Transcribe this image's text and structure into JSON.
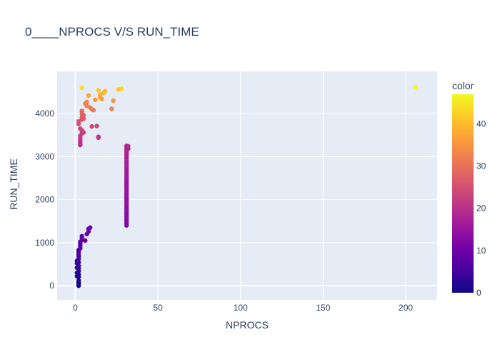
{
  "chart_data": {
    "type": "scatter",
    "title": "0____NPROCS V/S RUN_TIME",
    "xlabel": "NPROCS",
    "ylabel": "RUN_TIME",
    "xlim": [
      -11,
      219
    ],
    "ylim": [
      -330,
      4980
    ],
    "x_ticks": [
      0,
      50,
      100,
      150,
      200
    ],
    "y_ticks": [
      0,
      1000,
      2000,
      3000,
      4000
    ],
    "colorbar": {
      "title": "color",
      "min": 0,
      "max": 47,
      "ticks": [
        0,
        10,
        20,
        30,
        40
      ]
    },
    "colorscale": [
      "#0d0887",
      "#46039f",
      "#7201a8",
      "#9c179e",
      "#bd3786",
      "#d8576b",
      "#ed7953",
      "#fb9f3a",
      "#fdca26",
      "#f0f921"
    ],
    "plot_bg": "#e5ecf6",
    "grid": true,
    "legend": "none",
    "points": [
      {
        "x": 2,
        "y": 0,
        "c": 0
      },
      {
        "x": 2,
        "y": 40,
        "c": 0.5
      },
      {
        "x": 2,
        "y": 80,
        "c": 1
      },
      {
        "x": 2,
        "y": 120,
        "c": 1.5
      },
      {
        "x": 2,
        "y": 200,
        "c": 1.5
      },
      {
        "x": 1,
        "y": 220,
        "c": 1.5
      },
      {
        "x": 2,
        "y": 260,
        "c": 2
      },
      {
        "x": 1,
        "y": 300,
        "c": 2
      },
      {
        "x": 2,
        "y": 340,
        "c": 2.5
      },
      {
        "x": 2,
        "y": 400,
        "c": 3
      },
      {
        "x": 1,
        "y": 420,
        "c": 3
      },
      {
        "x": 2,
        "y": 460,
        "c": 3.5
      },
      {
        "x": 1,
        "y": 520,
        "c": 4
      },
      {
        "x": 2,
        "y": 540,
        "c": 4
      },
      {
        "x": 1,
        "y": 580,
        "c": 4.5
      },
      {
        "x": 2,
        "y": 620,
        "c": 5
      },
      {
        "x": 2,
        "y": 680,
        "c": 5.5
      },
      {
        "x": 2,
        "y": 720,
        "c": 6
      },
      {
        "x": 2,
        "y": 780,
        "c": 6
      },
      {
        "x": 2,
        "y": 830,
        "c": 6.5
      },
      {
        "x": 3,
        "y": 870,
        "c": 7
      },
      {
        "x": 3,
        "y": 930,
        "c": 7.5
      },
      {
        "x": 3,
        "y": 980,
        "c": 7.5
      },
      {
        "x": 3,
        "y": 1020,
        "c": 8
      },
      {
        "x": 4,
        "y": 1060,
        "c": 8
      },
      {
        "x": 4,
        "y": 1100,
        "c": 8.5
      },
      {
        "x": 4,
        "y": 1150,
        "c": 8.5
      },
      {
        "x": 6,
        "y": 1050,
        "c": 9
      },
      {
        "x": 7,
        "y": 1200,
        "c": 9
      },
      {
        "x": 8,
        "y": 1260,
        "c": 9.5
      },
      {
        "x": 8,
        "y": 1320,
        "c": 10
      },
      {
        "x": 9,
        "y": 1350,
        "c": 10
      },
      {
        "x": 31,
        "y": 1400,
        "c": 12
      },
      {
        "x": 31,
        "y": 1450,
        "c": 12
      },
      {
        "x": 31,
        "y": 1500,
        "c": 12.5
      },
      {
        "x": 31,
        "y": 1550,
        "c": 12.5
      },
      {
        "x": 31,
        "y": 1600,
        "c": 13
      },
      {
        "x": 31,
        "y": 1650,
        "c": 13
      },
      {
        "x": 31,
        "y": 1700,
        "c": 13
      },
      {
        "x": 31,
        "y": 1750,
        "c": 13.5
      },
      {
        "x": 31,
        "y": 1800,
        "c": 13.5
      },
      {
        "x": 31,
        "y": 1850,
        "c": 13.5
      },
      {
        "x": 31,
        "y": 1900,
        "c": 14
      },
      {
        "x": 31,
        "y": 1950,
        "c": 14
      },
      {
        "x": 31,
        "y": 2000,
        "c": 14
      },
      {
        "x": 31,
        "y": 2050,
        "c": 14.5
      },
      {
        "x": 31,
        "y": 2100,
        "c": 14.5
      },
      {
        "x": 31,
        "y": 2150,
        "c": 14.5
      },
      {
        "x": 31,
        "y": 2200,
        "c": 15
      },
      {
        "x": 31,
        "y": 2250,
        "c": 15
      },
      {
        "x": 31,
        "y": 2300,
        "c": 15
      },
      {
        "x": 31,
        "y": 2350,
        "c": 15.5
      },
      {
        "x": 31,
        "y": 2400,
        "c": 15.5
      },
      {
        "x": 31,
        "y": 2450,
        "c": 15.5
      },
      {
        "x": 31,
        "y": 2500,
        "c": 16
      },
      {
        "x": 31,
        "y": 2550,
        "c": 16
      },
      {
        "x": 31,
        "y": 2600,
        "c": 16
      },
      {
        "x": 31,
        "y": 2650,
        "c": 16.5
      },
      {
        "x": 31,
        "y": 2700,
        "c": 16.5
      },
      {
        "x": 31,
        "y": 2750,
        "c": 16.5
      },
      {
        "x": 31,
        "y": 2800,
        "c": 17
      },
      {
        "x": 31,
        "y": 2850,
        "c": 17
      },
      {
        "x": 31,
        "y": 2900,
        "c": 17
      },
      {
        "x": 31,
        "y": 2950,
        "c": 17.5
      },
      {
        "x": 31,
        "y": 3000,
        "c": 17.5
      },
      {
        "x": 31,
        "y": 3050,
        "c": 17.5
      },
      {
        "x": 31,
        "y": 3100,
        "c": 18
      },
      {
        "x": 31,
        "y": 3150,
        "c": 18
      },
      {
        "x": 31,
        "y": 3200,
        "c": 18
      },
      {
        "x": 32,
        "y": 3180,
        "c": 18
      },
      {
        "x": 32,
        "y": 3240,
        "c": 18.5
      },
      {
        "x": 31,
        "y": 3250,
        "c": 18.5
      },
      {
        "x": 3,
        "y": 3270,
        "c": 20
      },
      {
        "x": 3,
        "y": 3320,
        "c": 20
      },
      {
        "x": 3,
        "y": 3380,
        "c": 20.5
      },
      {
        "x": 3,
        "y": 3430,
        "c": 21
      },
      {
        "x": 3,
        "y": 3480,
        "c": 21.5
      },
      {
        "x": 4,
        "y": 3540,
        "c": 22
      },
      {
        "x": 5,
        "y": 3560,
        "c": 22.5
      },
      {
        "x": 14,
        "y": 3440,
        "c": 21
      },
      {
        "x": 14,
        "y": 3460,
        "c": 21
      },
      {
        "x": 4,
        "y": 3610,
        "c": 23
      },
      {
        "x": 3,
        "y": 3650,
        "c": 23.5
      },
      {
        "x": 10,
        "y": 3700,
        "c": 23.5
      },
      {
        "x": 13,
        "y": 3710,
        "c": 24
      },
      {
        "x": 2,
        "y": 3760,
        "c": 25
      },
      {
        "x": 2,
        "y": 3820,
        "c": 25.5
      },
      {
        "x": 4,
        "y": 3860,
        "c": 26
      },
      {
        "x": 5,
        "y": 3880,
        "c": 26.5
      },
      {
        "x": 4,
        "y": 3920,
        "c": 27
      },
      {
        "x": 5,
        "y": 3960,
        "c": 27.5
      },
      {
        "x": 4,
        "y": 4000,
        "c": 28
      },
      {
        "x": 4,
        "y": 4060,
        "c": 28.5
      },
      {
        "x": 10,
        "y": 4100,
        "c": 31
      },
      {
        "x": 11,
        "y": 4080,
        "c": 31.5
      },
      {
        "x": 9,
        "y": 4140,
        "c": 31.5
      },
      {
        "x": 22,
        "y": 4110,
        "c": 32
      },
      {
        "x": 7,
        "y": 4180,
        "c": 32.5
      },
      {
        "x": 6,
        "y": 4230,
        "c": 33
      },
      {
        "x": 7,
        "y": 4270,
        "c": 33.5
      },
      {
        "x": 23,
        "y": 4300,
        "c": 35
      },
      {
        "x": 12,
        "y": 4320,
        "c": 35.5
      },
      {
        "x": 16,
        "y": 4340,
        "c": 36
      },
      {
        "x": 15,
        "y": 4380,
        "c": 37
      },
      {
        "x": 8,
        "y": 4420,
        "c": 37.5
      },
      {
        "x": 15,
        "y": 4440,
        "c": 38
      },
      {
        "x": 17,
        "y": 4480,
        "c": 39
      },
      {
        "x": 18,
        "y": 4520,
        "c": 40
      },
      {
        "x": 14,
        "y": 4540,
        "c": 41
      },
      {
        "x": 26,
        "y": 4560,
        "c": 42
      },
      {
        "x": 28,
        "y": 4580,
        "c": 43
      },
      {
        "x": 4,
        "y": 4600,
        "c": 44
      },
      {
        "x": 206,
        "y": 4620,
        "c": 47
      }
    ]
  }
}
